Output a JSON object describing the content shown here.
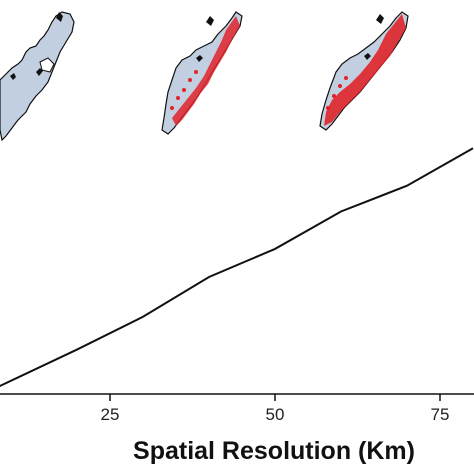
{
  "chart_data": {
    "type": "line",
    "xlabel": "Spatial Resolution (Km)",
    "ylabel": "",
    "x_ticks": [
      25,
      50,
      75
    ],
    "xlim": [
      8,
      80
    ],
    "ylim": [
      0,
      1
    ],
    "grid": false,
    "series": [
      {
        "color": "#111111",
        "x": [
          8,
          20,
          30,
          40,
          50,
          60,
          70,
          80
        ],
        "y": [
          0.03,
          0.19,
          0.33,
          0.5,
          0.62,
          0.78,
          0.89,
          1.05
        ]
      }
    ],
    "inset_maps": [
      {
        "icon": "map-no-highlight",
        "fill": "#c2cfe0",
        "highlight": "none"
      },
      {
        "icon": "map-partial-highlight",
        "fill": "#c2cfe0",
        "highlight": "#e0232a"
      },
      {
        "icon": "map-heavy-highlight",
        "fill": "#c2cfe0",
        "highlight": "#e0232a"
      }
    ]
  }
}
